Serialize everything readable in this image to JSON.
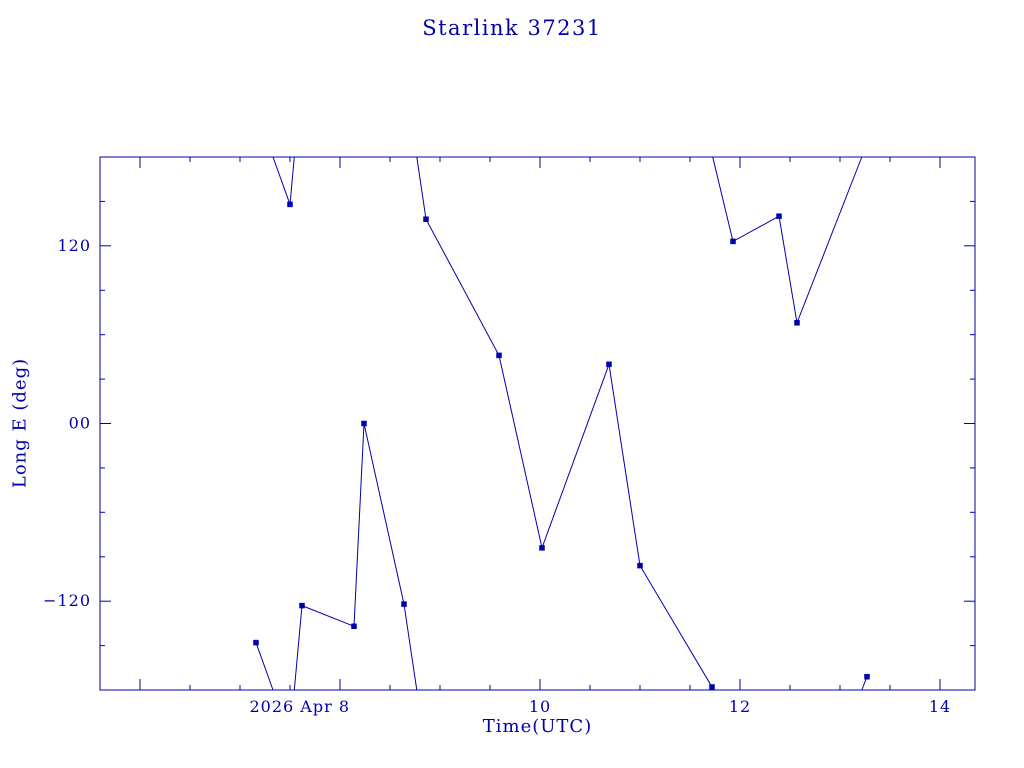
{
  "colors": {
    "ink": "#0000aa",
    "background": "#ffffff"
  },
  "chart_data": {
    "type": "line",
    "title": "Starlink 37231",
    "xlabel": "Time(UTC)",
    "ylabel": "Long E (deg)",
    "x_unit": "day of April 2026, UTC",
    "xlim": [
      5.6,
      14.35
    ],
    "ylim": [
      -180,
      180
    ],
    "grid": false,
    "legend": "none",
    "wrap_at": 180,
    "marker": "square",
    "line_color": "#0000aa",
    "x_ticks_major": [
      6,
      8,
      10,
      12,
      14
    ],
    "x_minor_step": 0.5,
    "y_ticks_major": [
      -120,
      0,
      120
    ],
    "y_minor_step": 30,
    "x_tick_labels": [
      {
        "value": 8,
        "label": "2026 Apr 8"
      },
      {
        "value": 10,
        "label": "10"
      },
      {
        "value": 12,
        "label": "12"
      },
      {
        "value": 14,
        "label": "14"
      }
    ],
    "y_tick_labels": [
      {
        "value": 120,
        "label": "120"
      },
      {
        "value": 0,
        "label": "00"
      },
      {
        "value": -120,
        "label": "−120"
      }
    ],
    "points": [
      {
        "t": 7.16,
        "lon": -148
      },
      {
        "t": 7.5,
        "lon": 148
      },
      {
        "t": 7.62,
        "lon": -123
      },
      {
        "t": 8.14,
        "lon": -137
      },
      {
        "t": 8.24,
        "lon": 0
      },
      {
        "t": 8.64,
        "lon": -122
      },
      {
        "t": 8.86,
        "lon": 138
      },
      {
        "t": 9.59,
        "lon": 46
      },
      {
        "t": 10.02,
        "lon": -84
      },
      {
        "t": 10.69,
        "lon": 40
      },
      {
        "t": 11.0,
        "lon": -96
      },
      {
        "t": 11.72,
        "lon": -178
      },
      {
        "t": 11.93,
        "lon": 123
      },
      {
        "t": 12.39,
        "lon": 140
      },
      {
        "t": 12.57,
        "lon": 68
      },
      {
        "t": 13.27,
        "lon": -171
      }
    ]
  }
}
